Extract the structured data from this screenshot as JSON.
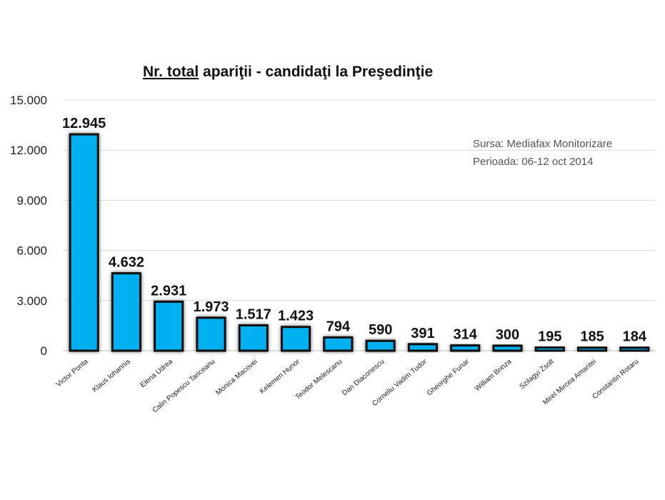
{
  "chart_data": {
    "type": "bar",
    "title_underlined": "Nr. total",
    "title_rest": " apariţii - candidaţi la Preşedinţie",
    "categories": [
      "Victor Ponta",
      "Klaus Iohannis",
      "Elena Udrea",
      "Calin Popescu Tariceanu",
      "Monica Macovei",
      "Kelemen Hunor",
      "Teodor Melescanu",
      "Dan Diaconescu",
      "Corneliu Vadim Tudor",
      "Gheorghe Funar",
      "William Brinza",
      "Szilagyi Zsolt",
      "Mirel Mircea Amaritei",
      "Constantin Rotaru"
    ],
    "values": [
      12945,
      4632,
      2931,
      1973,
      1517,
      1423,
      794,
      590,
      391,
      314,
      300,
      195,
      185,
      184
    ],
    "value_labels": [
      "12.945",
      "4.632",
      "2.931",
      "1.973",
      "1.517",
      "1.423",
      "794",
      "590",
      "391",
      "314",
      "300",
      "195",
      "185",
      "184"
    ],
    "ylim": [
      0,
      15000
    ],
    "yticks": [
      0,
      3000,
      6000,
      9000,
      12000,
      15000
    ],
    "ytick_labels": [
      "0",
      "3.000",
      "6.000",
      "9.000",
      "12.000",
      "15.000"
    ],
    "grid": true,
    "bar_color": "#00b0f0",
    "note_line1": "Sursa: Mediafax Monitorizare",
    "note_line2": "Perioada: 06-12 oct 2014"
  }
}
